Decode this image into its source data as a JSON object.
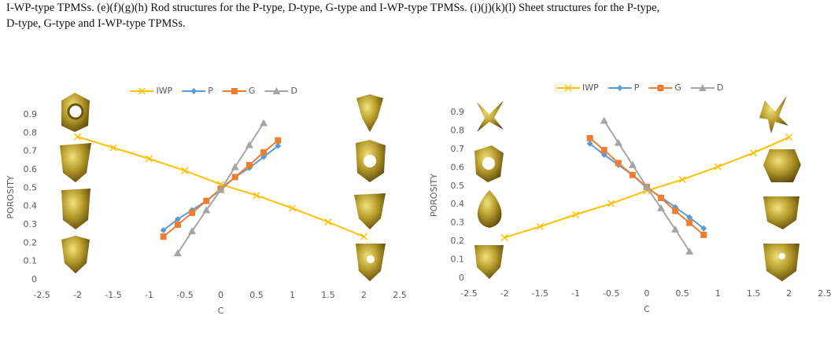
{
  "document": {
    "caption": [
      "I-WP-type TPMSs. (e)(f)(g)(h) Rod structures for the P-type, D-type, G-type and I-WP-type TPMSs. (i)(j)(k)(l) Sheet structures for the P-type,",
      "D-type, G-type and I-WP-type TPMSs."
    ]
  },
  "chart_data": [
    {
      "type": "line",
      "xlabel": "C",
      "ylabel": "POROSITY",
      "xlim": [
        -2.5,
        2.5
      ],
      "ylim": [
        0,
        0.9
      ],
      "xticks": [
        -2.5,
        -2,
        -1.5,
        -1,
        -0.5,
        0,
        0.5,
        1,
        1.5,
        2,
        2.5
      ],
      "yticks": [
        0,
        0.1,
        0.2,
        0.3,
        0.4,
        0.5,
        0.6,
        0.7,
        0.8,
        0.9
      ],
      "legend": "top",
      "series": [
        {
          "name": "IWP",
          "color": "#ffc000",
          "marker": "x",
          "x": [
            -2,
            -1.5,
            -1,
            -0.5,
            0,
            0.5,
            1,
            1.5,
            2
          ],
          "values": [
            0.78,
            0.72,
            0.66,
            0.595,
            0.52,
            0.46,
            0.39,
            0.315,
            0.235
          ]
        },
        {
          "name": "P",
          "color": "#5b9bd5",
          "marker": "diamond",
          "x": [
            -0.8,
            -0.6,
            -0.4,
            -0.2,
            0,
            0.2,
            0.4,
            0.6,
            0.8
          ],
          "values": [
            0.27,
            0.33,
            0.38,
            0.43,
            0.49,
            0.56,
            0.61,
            0.67,
            0.73
          ]
        },
        {
          "name": "G",
          "color": "#ed7d31",
          "marker": "square",
          "x": [
            -0.8,
            -0.6,
            -0.4,
            -0.2,
            0,
            0.2,
            0.4,
            0.6,
            0.8
          ],
          "values": [
            0.235,
            0.3,
            0.365,
            0.43,
            0.495,
            0.56,
            0.625,
            0.695,
            0.76
          ]
        },
        {
          "name": "D",
          "color": "#a5a5a5",
          "marker": "triangle",
          "x": [
            -0.6,
            -0.4,
            -0.2,
            0,
            0.2,
            0.4,
            0.6
          ],
          "values": [
            0.145,
            0.265,
            0.38,
            0.49,
            0.615,
            0.735,
            0.855
          ]
        }
      ]
    },
    {
      "type": "line",
      "xlabel": "C",
      "ylabel": "POROSITY",
      "xlim": [
        -2.5,
        2.5
      ],
      "ylim": [
        0,
        0.9
      ],
      "xticks": [
        -2.5,
        -2,
        -1.5,
        -1,
        -0.5,
        0,
        0.5,
        1,
        1.5,
        2,
        2.5
      ],
      "yticks": [
        0,
        0.1,
        0.2,
        0.3,
        0.4,
        0.5,
        0.6,
        0.7,
        0.8,
        0.9
      ],
      "legend": "top",
      "series": [
        {
          "name": "IWP",
          "color": "#ffc000",
          "marker": "x",
          "x": [
            -2,
            -1.5,
            -1,
            -0.5,
            0,
            0.5,
            1,
            1.5,
            2
          ],
          "values": [
            0.22,
            0.28,
            0.345,
            0.405,
            0.475,
            0.535,
            0.605,
            0.68,
            0.765
          ]
        },
        {
          "name": "P",
          "color": "#5b9bd5",
          "marker": "diamond",
          "x": [
            -0.8,
            -0.6,
            -0.4,
            -0.2,
            0,
            0.2,
            0.4,
            0.6,
            0.8
          ],
          "values": [
            0.73,
            0.67,
            0.615,
            0.56,
            0.49,
            0.44,
            0.385,
            0.33,
            0.27
          ]
        },
        {
          "name": "G",
          "color": "#ed7d31",
          "marker": "square",
          "x": [
            -0.8,
            -0.6,
            -0.4,
            -0.2,
            0,
            0.2,
            0.4,
            0.6,
            0.8
          ],
          "values": [
            0.76,
            0.695,
            0.625,
            0.56,
            0.495,
            0.435,
            0.365,
            0.3,
            0.235
          ]
        },
        {
          "name": "D",
          "color": "#a5a5a5",
          "marker": "triangle",
          "x": [
            -0.6,
            -0.4,
            -0.2,
            0,
            0.2,
            0.4,
            0.6
          ],
          "values": [
            0.855,
            0.735,
            0.615,
            0.495,
            0.38,
            0.265,
            0.145
          ]
        }
      ]
    }
  ]
}
